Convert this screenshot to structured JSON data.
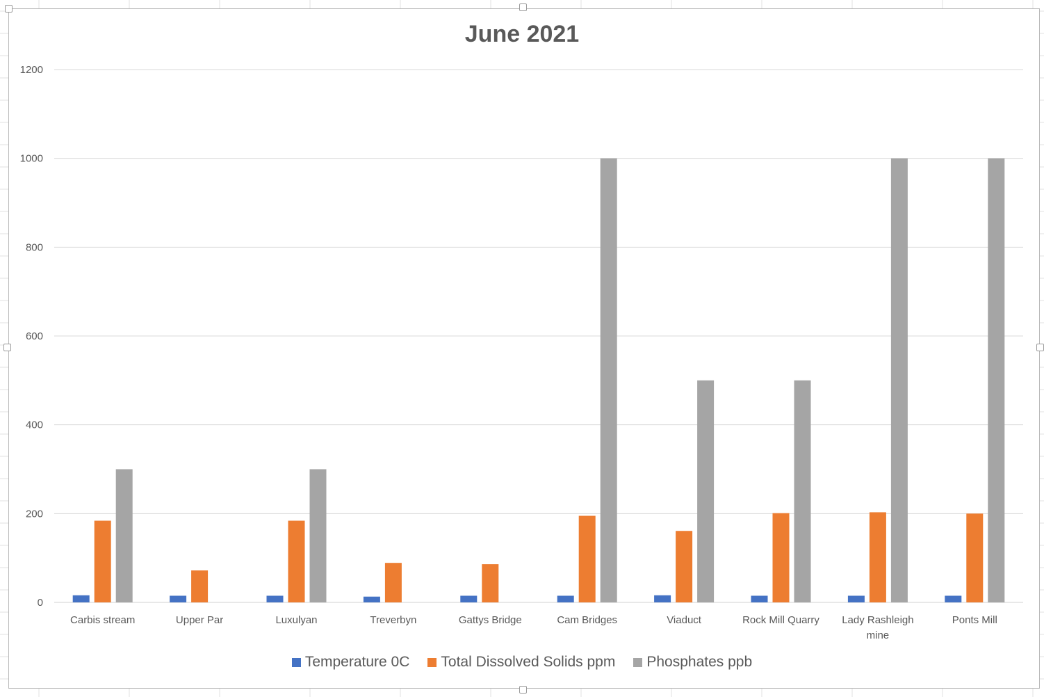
{
  "chart_data": {
    "type": "bar",
    "title": "June 2021",
    "xlabel": "",
    "ylabel": "",
    "ylim": [
      0,
      1200
    ],
    "yticks": [
      0,
      200,
      400,
      600,
      800,
      1000,
      1200
    ],
    "grid": true,
    "legend_position": "bottom",
    "categories": [
      [
        "Carbis stream"
      ],
      [
        "Upper Par"
      ],
      [
        "Luxulyan"
      ],
      [
        "Treverbyn"
      ],
      [
        "Gattys Bridge"
      ],
      [
        "Cam Bridges"
      ],
      [
        "Viaduct"
      ],
      [
        "Rock Mill Quarry"
      ],
      [
        "Lady Rashleigh",
        "mine"
      ],
      [
        "Ponts Mill"
      ]
    ],
    "series": [
      {
        "name": "Temperature 0C",
        "color": "#4472C4",
        "values": [
          16,
          15,
          15,
          13,
          15,
          15,
          16,
          15,
          15,
          15
        ]
      },
      {
        "name": "Total Dissolved Solids ppm",
        "color": "#ED7D31",
        "values": [
          184,
          72,
          184,
          89,
          86,
          195,
          161,
          201,
          203,
          200
        ]
      },
      {
        "name": "Phosphates ppb",
        "color": "#A5A5A5",
        "values": [
          300,
          null,
          300,
          null,
          null,
          1000,
          500,
          500,
          1000,
          1000
        ]
      }
    ]
  }
}
